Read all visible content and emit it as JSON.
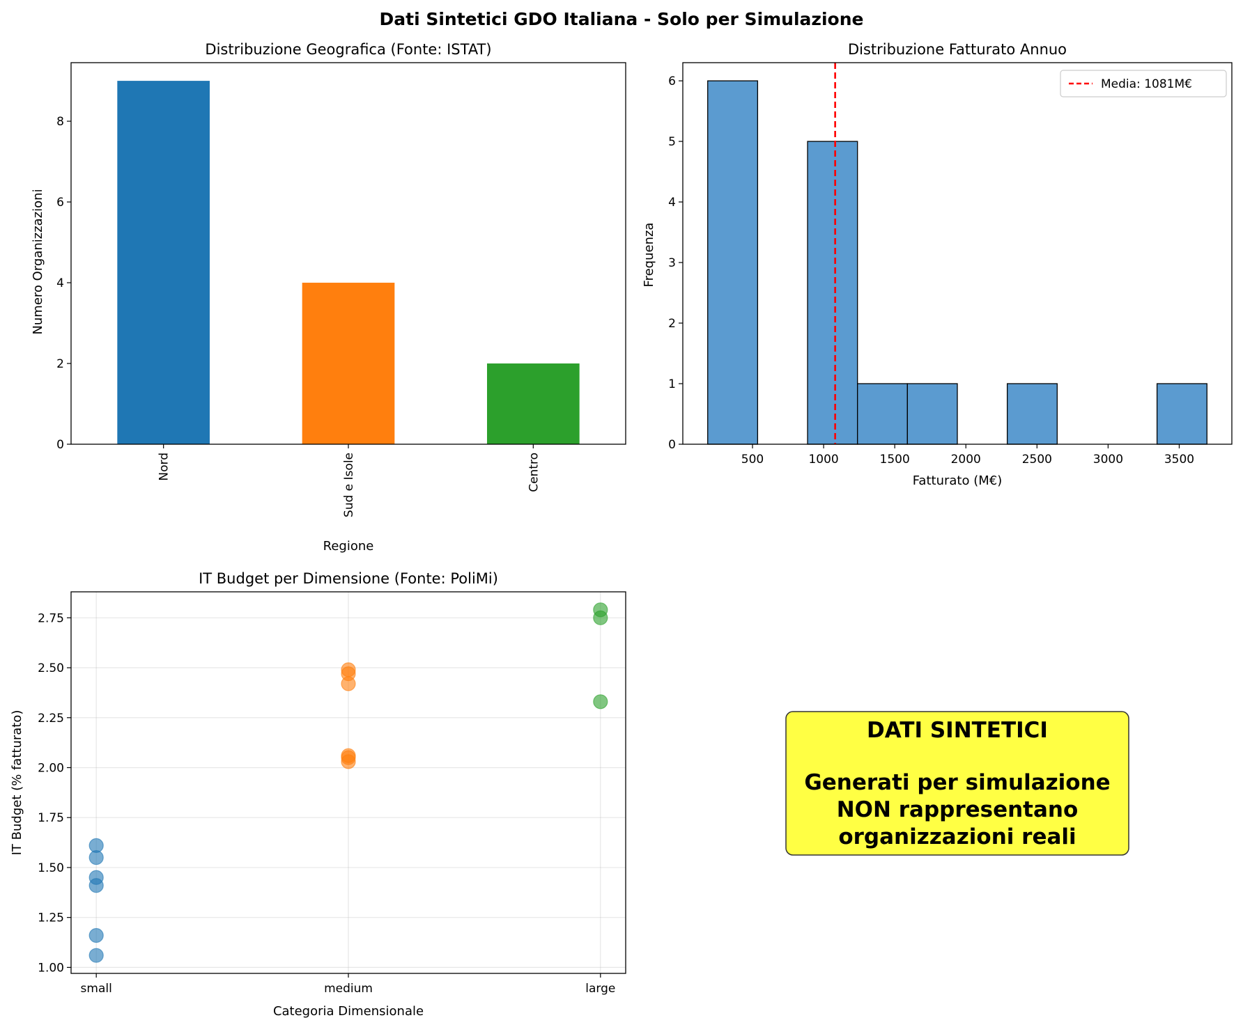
{
  "figure": {
    "suptitle": "Dati Sintetici GDO Italiana - Solo per Simulazione"
  },
  "chart_data": [
    {
      "type": "bar",
      "title": "Distribuzione Geografica (Fonte: ISTAT)",
      "xlabel": "Regione",
      "ylabel": "Numero Organizzazioni",
      "categories": [
        "Nord",
        "Sud e Isole",
        "Centro"
      ],
      "values": [
        9,
        4,
        2
      ],
      "colors": [
        "#1f77b4",
        "#ff7f0e",
        "#2ca02c"
      ],
      "ylim": [
        0,
        9.45
      ],
      "yticks": [
        0,
        2,
        4,
        6,
        8
      ],
      "xtick_rotation": "vertical",
      "grid": false
    },
    {
      "type": "bar",
      "subtype": "histogram",
      "title": "Distribuzione Fatturato Annuo",
      "xlabel": "Fatturato (M€)",
      "ylabel": "Frequenza",
      "bins": [
        {
          "start": 185,
          "end": 536,
          "count": 6
        },
        {
          "start": 536,
          "end": 887,
          "count": 0
        },
        {
          "start": 887,
          "end": 1238,
          "count": 5
        },
        {
          "start": 1238,
          "end": 1589,
          "count": 1
        },
        {
          "start": 1589,
          "end": 1940,
          "count": 1
        },
        {
          "start": 1940,
          "end": 2291,
          "count": 0
        },
        {
          "start": 2291,
          "end": 2642,
          "count": 1
        },
        {
          "start": 2642,
          "end": 2993,
          "count": 0
        },
        {
          "start": 2993,
          "end": 3344,
          "count": 0
        },
        {
          "start": 3344,
          "end": 3695,
          "count": 1
        }
      ],
      "bar_color": "#5b9bd0",
      "edge_color": "#000000",
      "mean_line": {
        "x": 1081,
        "label": "Media: 1081M€",
        "color": "#ff0000",
        "style": "dashed"
      },
      "xlim": [
        10,
        3870
      ],
      "ylim": [
        0,
        6.3
      ],
      "xticks": [
        500,
        1000,
        1500,
        2000,
        2500,
        3000,
        3500
      ],
      "yticks": [
        0,
        1,
        2,
        3,
        4,
        5,
        6
      ],
      "legend": "top-right",
      "grid": false
    },
    {
      "type": "scatter",
      "title": "IT Budget per Dimensione (Fonte: PoliMi)",
      "xlabel": "Categoria Dimensionale",
      "ylabel": "IT Budget (% fatturato)",
      "categories": [
        "small",
        "medium",
        "large"
      ],
      "series": [
        {
          "category": "small",
          "color": "#1f77b4",
          "values": [
            1.61,
            1.55,
            1.45,
            1.41,
            1.16,
            1.06
          ]
        },
        {
          "category": "medium",
          "color": "#ff7f0e",
          "values": [
            2.49,
            2.47,
            2.42,
            2.06,
            2.05,
            2.03
          ]
        },
        {
          "category": "large",
          "color": "#2ca02c",
          "values": [
            2.79,
            2.75,
            2.33
          ]
        }
      ],
      "ylim": [
        0.97,
        2.88
      ],
      "yticks": [
        1.0,
        1.25,
        1.5,
        1.75,
        2.0,
        2.25,
        2.5,
        2.75
      ],
      "ytick_labels": [
        "1.00",
        "1.25",
        "1.50",
        "1.75",
        "2.00",
        "2.25",
        "2.50",
        "2.75"
      ],
      "alpha": 0.6,
      "grid": true
    }
  ],
  "note": {
    "heading": "DATI SINTETICI",
    "lines": [
      "Generati per simulazione",
      "NON rappresentano",
      "organizzazioni reali"
    ],
    "background": "#ffff44"
  }
}
